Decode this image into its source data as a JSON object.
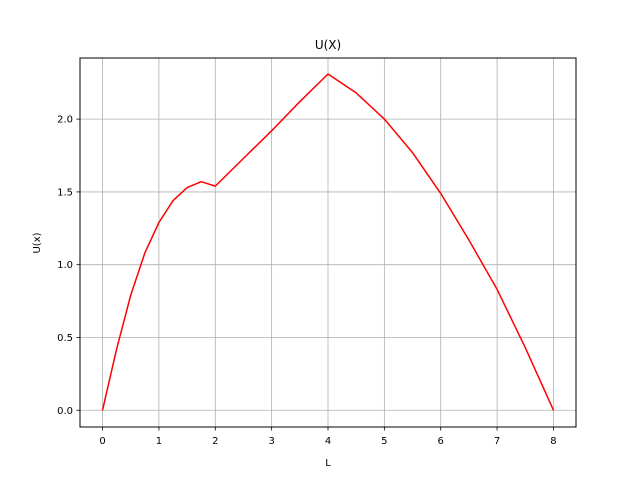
{
  "chart_data": {
    "type": "line",
    "title": "U(X)",
    "xlabel": "L",
    "ylabel": "U(x)",
    "xlim": [
      -0.4,
      8.4
    ],
    "ylim": [
      -0.115,
      2.42
    ],
    "xticks": [
      0,
      1,
      2,
      3,
      4,
      5,
      6,
      7,
      8
    ],
    "xtick_labels": [
      "0",
      "1",
      "2",
      "3",
      "4",
      "5",
      "6",
      "7",
      "8"
    ],
    "yticks": [
      0.0,
      0.5,
      1.0,
      1.5,
      2.0
    ],
    "ytick_labels": [
      "0.0",
      "0.5",
      "1.0",
      "1.5",
      "2.0"
    ],
    "grid": true,
    "series": [
      {
        "color": "#ff0000",
        "x": [
          0,
          0.25,
          0.5,
          0.75,
          1.0,
          1.25,
          1.5,
          1.75,
          2.0,
          2.5,
          3.0,
          3.5,
          4.0,
          4.5,
          5.0,
          5.5,
          6.0,
          6.5,
          7.0,
          7.5,
          8.0
        ],
        "y": [
          0,
          0.42,
          0.79,
          1.08,
          1.29,
          1.44,
          1.53,
          1.57,
          1.54,
          1.73,
          1.92,
          2.12,
          2.31,
          2.18,
          2.0,
          1.77,
          1.49,
          1.17,
          0.83,
          0.43,
          0.0
        ]
      }
    ]
  }
}
